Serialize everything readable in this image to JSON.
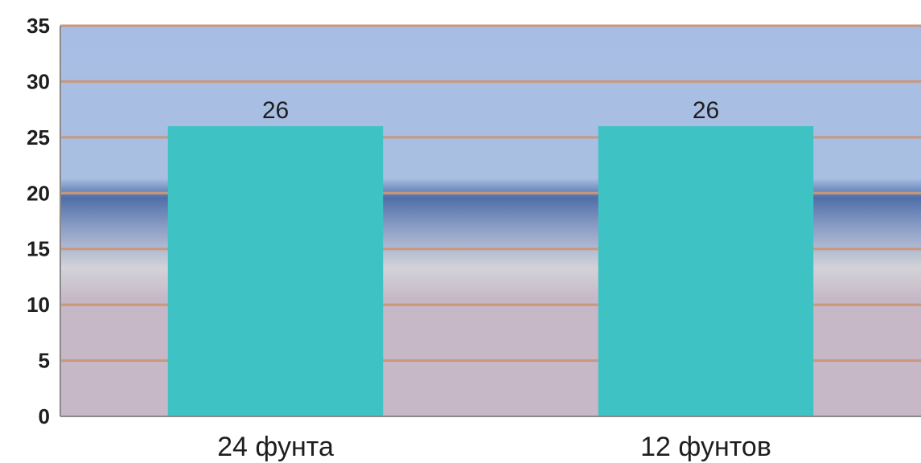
{
  "colors": {
    "bar": "#3fc2c4",
    "gridline": "#c9977a",
    "plot_top": "#a7bde3",
    "plot_band_dark": "#4f6fa8",
    "plot_band_light": "#d2d2d6",
    "plot_bottom": "#c6b8c6",
    "axis": "#8a8a8a"
  },
  "chart_data": {
    "type": "bar",
    "categories": [
      "24 фунта",
      "12 фунтов"
    ],
    "values": [
      26,
      26
    ],
    "data_labels": [
      "26",
      "26"
    ],
    "yticks": [
      "0",
      "5",
      "10",
      "15",
      "20",
      "25",
      "30",
      "35"
    ],
    "ylim": [
      0,
      35
    ],
    "grid": true,
    "legend": "none"
  }
}
